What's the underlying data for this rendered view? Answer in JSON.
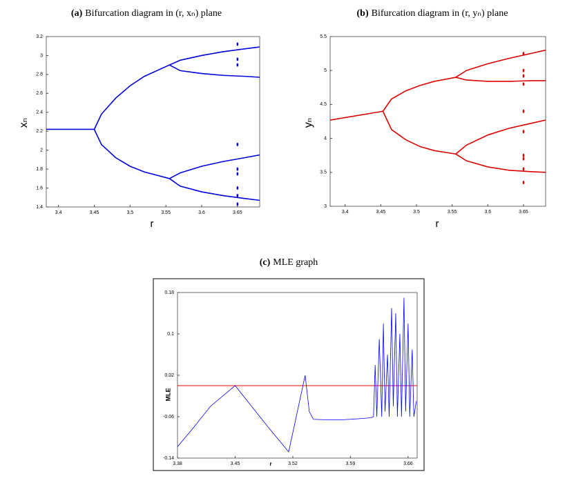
{
  "chart_data": [
    {
      "type": "line",
      "panel_label": "(a)",
      "title": "Bifurcation diagram in (r, xₙ) plane",
      "x_label": "r",
      "y_label": "xₙ",
      "xlim": [
        3.383,
        3.681
      ],
      "xticks": [
        3.4,
        3.45,
        3.5,
        3.55,
        3.6,
        3.65
      ],
      "ylim": [
        1.4,
        3.2
      ],
      "yticks": [
        1.4,
        1.6,
        1.8,
        2,
        2.2,
        2.4,
        2.6,
        2.8,
        3,
        3.2
      ],
      "series": [
        {
          "color": "#0000dd",
          "x": [
            3.383,
            3.45
          ],
          "values": [
            2.22,
            2.22
          ]
        },
        {
          "color": "#0000dd",
          "x": [
            3.45,
            3.46,
            3.48,
            3.5,
            3.52,
            3.555
          ],
          "values": [
            2.22,
            2.38,
            2.55,
            2.68,
            2.78,
            2.9
          ]
        },
        {
          "color": "#0000dd",
          "x": [
            3.45,
            3.46,
            3.48,
            3.5,
            3.52,
            3.555
          ],
          "values": [
            2.22,
            2.06,
            1.92,
            1.83,
            1.77,
            1.7
          ]
        },
        {
          "color": "#0000dd",
          "x": [
            3.555,
            3.57,
            3.6,
            3.63,
            3.66,
            3.681
          ],
          "values": [
            2.9,
            2.95,
            3.0,
            3.04,
            3.07,
            3.09
          ]
        },
        {
          "color": "#0000dd",
          "x": [
            3.555,
            3.57,
            3.6,
            3.63,
            3.66,
            3.681
          ],
          "values": [
            2.9,
            2.84,
            2.81,
            2.79,
            2.78,
            2.77
          ]
        },
        {
          "color": "#0000dd",
          "x": [
            3.555,
            3.57,
            3.6,
            3.63,
            3.66,
            3.681
          ],
          "values": [
            1.7,
            1.76,
            1.83,
            1.88,
            1.92,
            1.95
          ]
        },
        {
          "color": "#0000dd",
          "x": [
            3.555,
            3.57,
            3.6,
            3.63,
            3.66,
            3.681
          ],
          "values": [
            1.7,
            1.62,
            1.56,
            1.52,
            1.49,
            1.47
          ]
        },
        {
          "color": "#0000dd",
          "marker": true,
          "x": [
            3.65,
            3.65,
            3.65,
            3.65,
            3.65,
            3.65,
            3.65,
            3.65,
            3.65
          ],
          "values": [
            3.12,
            2.96,
            2.9,
            2.06,
            1.8,
            1.75,
            1.6,
            1.52,
            1.43
          ]
        }
      ]
    },
    {
      "type": "line",
      "panel_label": "(b)",
      "title": "Bifurcation diagram in (r, yₙ) plane",
      "x_label": "r",
      "y_label": "yₙ",
      "xlim": [
        3.379,
        3.681
      ],
      "xticks": [
        3.4,
        3.45,
        3.5,
        3.55,
        3.6,
        3.65
      ],
      "ylim": [
        3,
        5.5
      ],
      "yticks": [
        3,
        3.5,
        4,
        4.5,
        5,
        5.5
      ],
      "series": [
        {
          "color": "#dd0000",
          "x": [
            3.379,
            3.453
          ],
          "values": [
            4.27,
            4.4
          ]
        },
        {
          "color": "#dd0000",
          "x": [
            3.453,
            3.465,
            3.485,
            3.505,
            3.525,
            3.555
          ],
          "values": [
            4.4,
            4.58,
            4.7,
            4.78,
            4.84,
            4.9
          ]
        },
        {
          "color": "#dd0000",
          "x": [
            3.453,
            3.465,
            3.485,
            3.505,
            3.525,
            3.555
          ],
          "values": [
            4.4,
            4.13,
            3.98,
            3.88,
            3.82,
            3.77
          ]
        },
        {
          "color": "#dd0000",
          "x": [
            3.555,
            3.57,
            3.6,
            3.63,
            3.66,
            3.681
          ],
          "values": [
            4.9,
            5.0,
            5.1,
            5.18,
            5.25,
            5.3
          ]
        },
        {
          "color": "#dd0000",
          "x": [
            3.555,
            3.57,
            3.6,
            3.63,
            3.66,
            3.681
          ],
          "values": [
            4.9,
            4.86,
            4.84,
            4.84,
            4.85,
            4.85
          ]
        },
        {
          "color": "#dd0000",
          "x": [
            3.555,
            3.57,
            3.6,
            3.63,
            3.66,
            3.681
          ],
          "values": [
            3.77,
            3.9,
            4.05,
            4.15,
            4.22,
            4.27
          ]
        },
        {
          "color": "#dd0000",
          "x": [
            3.555,
            3.57,
            3.6,
            3.63,
            3.66,
            3.681
          ],
          "values": [
            3.77,
            3.67,
            3.58,
            3.53,
            3.51,
            3.5
          ]
        },
        {
          "color": "#dd0000",
          "marker": true,
          "x": [
            3.65,
            3.65,
            3.65,
            3.65,
            3.65,
            3.65,
            3.65,
            3.65,
            3.65,
            3.65
          ],
          "values": [
            5.25,
            5.0,
            4.92,
            4.8,
            4.4,
            4.1,
            3.75,
            3.7,
            3.55,
            3.35
          ]
        }
      ]
    },
    {
      "type": "line",
      "panel_label": "(c)",
      "title": "MLE graph",
      "x_label": "r",
      "y_label": "MLE",
      "xlim": [
        3.38,
        3.671
      ],
      "xticks": [
        3.38,
        3.45,
        3.52,
        3.59,
        3.66
      ],
      "ylim": [
        -0.14,
        0.18
      ],
      "yticks": [
        -0.14,
        -0.06,
        0.02,
        0.1,
        0.18
      ],
      "reference_line": 0,
      "reference_color": "#ff0000",
      "series": [
        {
          "color": "#0000ff",
          "x": [
            3.38,
            3.4,
            3.42,
            3.45,
            3.47,
            3.49,
            3.515,
            3.535,
            3.54,
            3.545,
            3.56,
            3.58,
            3.6,
            3.615,
            3.618,
            3.62,
            3.622,
            3.625,
            3.628,
            3.63,
            3.632,
            3.635,
            3.637,
            3.64,
            3.642,
            3.645,
            3.647,
            3.65,
            3.652,
            3.655,
            3.657,
            3.66,
            3.662,
            3.665,
            3.667,
            3.67
          ],
          "values": [
            -0.118,
            -0.08,
            -0.04,
            0.0,
            -0.04,
            -0.08,
            -0.128,
            0.02,
            -0.05,
            -0.065,
            -0.066,
            -0.066,
            -0.064,
            -0.062,
            -0.06,
            0.04,
            -0.06,
            0.09,
            -0.06,
            0.12,
            -0.05,
            0.06,
            -0.06,
            0.15,
            -0.04,
            0.14,
            -0.06,
            0.1,
            -0.06,
            0.17,
            -0.05,
            0.12,
            -0.06,
            0.07,
            -0.06,
            -0.03
          ]
        }
      ]
    }
  ]
}
